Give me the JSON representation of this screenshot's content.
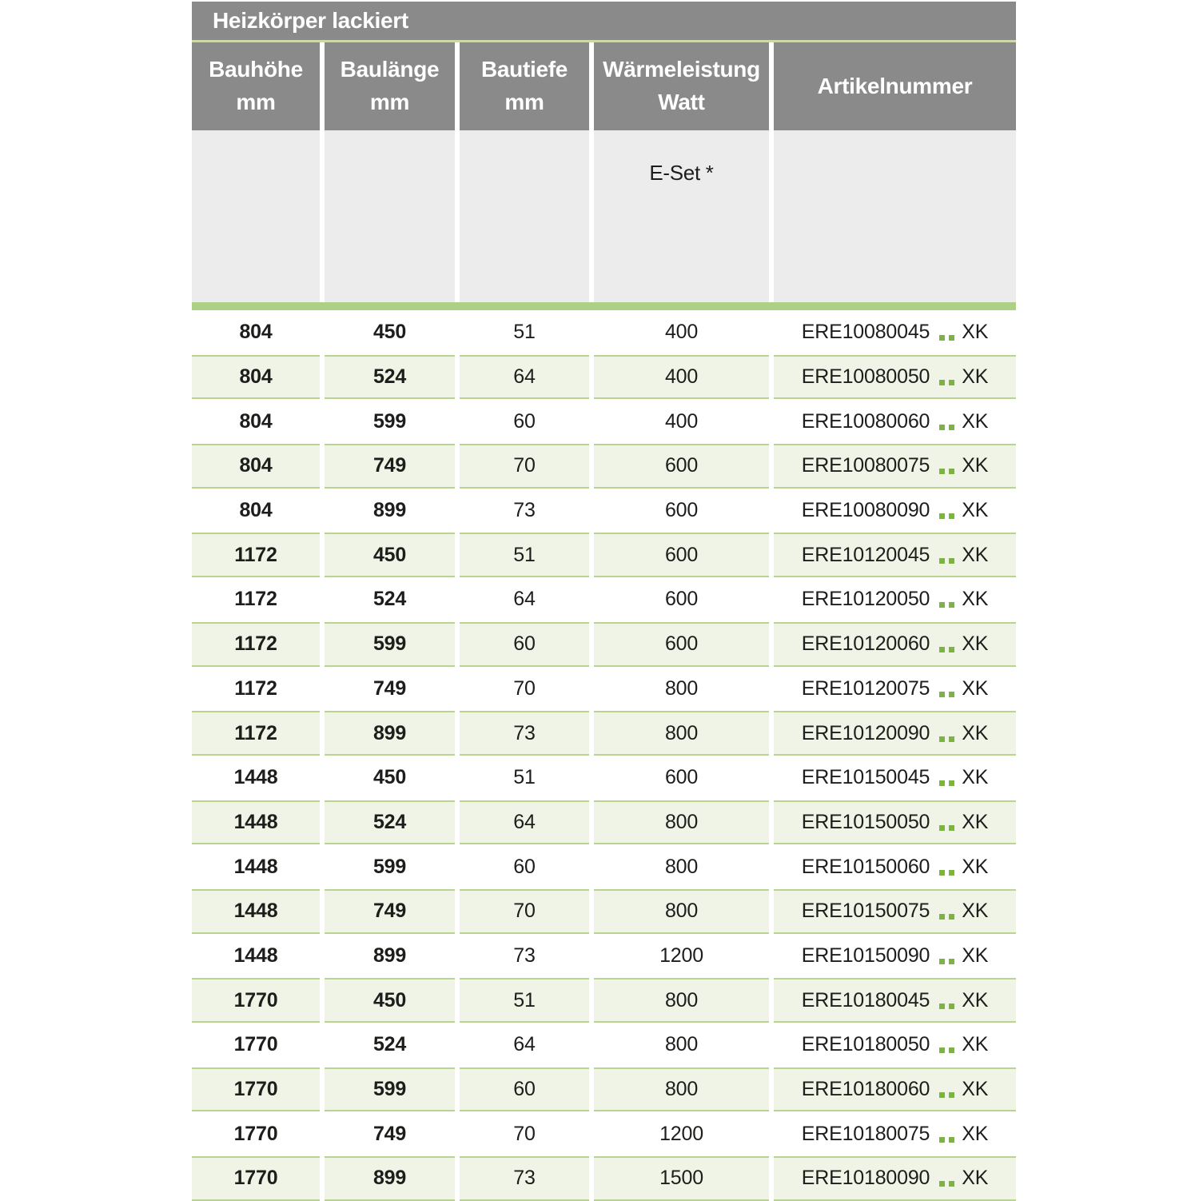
{
  "title": "Heizkörper lackiert",
  "columns": [
    {
      "label": "Bauhöhe",
      "unit": "mm"
    },
    {
      "label": "Baulänge",
      "unit": "mm"
    },
    {
      "label": "Bautiefe",
      "unit": "mm"
    },
    {
      "label": "Wärmeleistung",
      "unit": "Watt"
    },
    {
      "label": "Artikelnummer",
      "unit": ""
    }
  ],
  "subheader": {
    "eset_label": "E-Set *"
  },
  "rows": [
    {
      "bauhoehe": "804",
      "baulaenge": "450",
      "bautiefe": "51",
      "watt": "400",
      "artikel": "ERE10080045",
      "artikel_suffix": "XK"
    },
    {
      "bauhoehe": "804",
      "baulaenge": "524",
      "bautiefe": "64",
      "watt": "400",
      "artikel": "ERE10080050",
      "artikel_suffix": "XK"
    },
    {
      "bauhoehe": "804",
      "baulaenge": "599",
      "bautiefe": "60",
      "watt": "400",
      "artikel": "ERE10080060",
      "artikel_suffix": "XK"
    },
    {
      "bauhoehe": "804",
      "baulaenge": "749",
      "bautiefe": "70",
      "watt": "600",
      "artikel": "ERE10080075",
      "artikel_suffix": "XK"
    },
    {
      "bauhoehe": "804",
      "baulaenge": "899",
      "bautiefe": "73",
      "watt": "600",
      "artikel": "ERE10080090",
      "artikel_suffix": "XK"
    },
    {
      "bauhoehe": "1172",
      "baulaenge": "450",
      "bautiefe": "51",
      "watt": "600",
      "artikel": "ERE10120045",
      "artikel_suffix": "XK"
    },
    {
      "bauhoehe": "1172",
      "baulaenge": "524",
      "bautiefe": "64",
      "watt": "600",
      "artikel": "ERE10120050",
      "artikel_suffix": "XK"
    },
    {
      "bauhoehe": "1172",
      "baulaenge": "599",
      "bautiefe": "60",
      "watt": "600",
      "artikel": "ERE10120060",
      "artikel_suffix": "XK"
    },
    {
      "bauhoehe": "1172",
      "baulaenge": "749",
      "bautiefe": "70",
      "watt": "800",
      "artikel": "ERE10120075",
      "artikel_suffix": "XK"
    },
    {
      "bauhoehe": "1172",
      "baulaenge": "899",
      "bautiefe": "73",
      "watt": "800",
      "artikel": "ERE10120090",
      "artikel_suffix": "XK"
    },
    {
      "bauhoehe": "1448",
      "baulaenge": "450",
      "bautiefe": "51",
      "watt": "600",
      "artikel": "ERE10150045",
      "artikel_suffix": "XK"
    },
    {
      "bauhoehe": "1448",
      "baulaenge": "524",
      "bautiefe": "64",
      "watt": "800",
      "artikel": "ERE10150050",
      "artikel_suffix": "XK"
    },
    {
      "bauhoehe": "1448",
      "baulaenge": "599",
      "bautiefe": "60",
      "watt": "800",
      "artikel": "ERE10150060",
      "artikel_suffix": "XK"
    },
    {
      "bauhoehe": "1448",
      "baulaenge": "749",
      "bautiefe": "70",
      "watt": "800",
      "artikel": "ERE10150075",
      "artikel_suffix": "XK"
    },
    {
      "bauhoehe": "1448",
      "baulaenge": "899",
      "bautiefe": "73",
      "watt": "1200",
      "artikel": "ERE10150090",
      "artikel_suffix": "XK"
    },
    {
      "bauhoehe": "1770",
      "baulaenge": "450",
      "bautiefe": "51",
      "watt": "800",
      "artikel": "ERE10180045",
      "artikel_suffix": "XK"
    },
    {
      "bauhoehe": "1770",
      "baulaenge": "524",
      "bautiefe": "64",
      "watt": "800",
      "artikel": "ERE10180050",
      "artikel_suffix": "XK"
    },
    {
      "bauhoehe": "1770",
      "baulaenge": "599",
      "bautiefe": "60",
      "watt": "800",
      "artikel": "ERE10180060",
      "artikel_suffix": "XK"
    },
    {
      "bauhoehe": "1770",
      "baulaenge": "749",
      "bautiefe": "70",
      "watt": "1200",
      "artikel": "ERE10180075",
      "artikel_suffix": "XK"
    },
    {
      "bauhoehe": "1770",
      "baulaenge": "899",
      "bautiefe": "73",
      "watt": "1500",
      "artikel": "ERE10180090",
      "artikel_suffix": "XK"
    }
  ],
  "colors": {
    "header_gray": "#8a8a8a",
    "subheader_gray": "#ececec",
    "separator_green": "#ccd8ab",
    "green_bar": "#aed086",
    "row_tint": "#f0f4e6",
    "row_border": "#b9d490",
    "dot_green": "#7cb53e"
  }
}
